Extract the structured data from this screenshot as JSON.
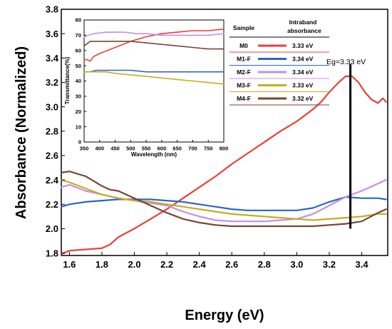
{
  "chart_data": [
    {
      "type": "line",
      "title": "",
      "xlabel": "Energy (eV)",
      "ylabel": "Absorbance (Normalized)",
      "xlim": [
        1.55,
        3.56
      ],
      "ylim": [
        1.78,
        3.8
      ],
      "x_ticks": [
        "1.6",
        "1.8",
        "2.0",
        "2.2",
        "2.4",
        "2.6",
        "2.8",
        "3.0",
        "3.2",
        "3.4"
      ],
      "y_ticks": [
        "1.8",
        "2.0",
        "2.2",
        "2.4",
        "2.6",
        "2.8",
        "3.0",
        "3.2",
        "3.4",
        "3.6",
        "3.8"
      ],
      "grid": false,
      "colors": {
        "M0": "#e8403a",
        "M1-F": "#2b64cf",
        "M2-F": "#c58fe0",
        "M3-F": "#c7ad1f",
        "M4-F": "#7a4535"
      },
      "series": [
        {
          "name": "M0",
          "color": "#e8403a",
          "x": [
            1.55,
            1.6,
            1.7,
            1.8,
            1.85,
            1.9,
            2.0,
            2.1,
            2.2,
            2.3,
            2.4,
            2.5,
            2.6,
            2.7,
            2.8,
            2.9,
            3.0,
            3.05,
            3.1,
            3.15,
            3.2,
            3.25,
            3.3,
            3.34,
            3.38,
            3.42,
            3.46,
            3.5,
            3.53,
            3.55
          ],
          "y": [
            1.79,
            1.82,
            1.83,
            1.84,
            1.87,
            1.93,
            2.0,
            2.08,
            2.16,
            2.25,
            2.34,
            2.43,
            2.53,
            2.62,
            2.71,
            2.8,
            2.88,
            2.93,
            2.98,
            3.04,
            3.12,
            3.19,
            3.25,
            3.25,
            3.2,
            3.12,
            3.06,
            3.03,
            3.07,
            3.04
          ]
        },
        {
          "name": "M1-F",
          "color": "#2b64cf",
          "x": [
            1.55,
            1.6,
            1.7,
            1.8,
            1.9,
            2.0,
            2.1,
            2.2,
            2.3,
            2.4,
            2.5,
            2.6,
            2.7,
            2.8,
            2.9,
            3.0,
            3.1,
            3.2,
            3.3,
            3.4,
            3.5,
            3.55
          ],
          "y": [
            2.18,
            2.2,
            2.22,
            2.23,
            2.24,
            2.24,
            2.24,
            2.23,
            2.22,
            2.2,
            2.18,
            2.16,
            2.15,
            2.15,
            2.15,
            2.15,
            2.17,
            2.22,
            2.26,
            2.25,
            2.25,
            2.24
          ]
        },
        {
          "name": "M2-F",
          "color": "#c58fe0",
          "x": [
            1.55,
            1.6,
            1.7,
            1.8,
            1.9,
            2.0,
            2.1,
            2.2,
            2.3,
            2.4,
            2.5,
            2.6,
            2.7,
            2.8,
            2.9,
            3.0,
            3.1,
            3.2,
            3.3,
            3.4,
            3.5,
            3.55
          ],
          "y": [
            2.34,
            2.36,
            2.31,
            2.28,
            2.25,
            2.23,
            2.21,
            2.19,
            2.14,
            2.1,
            2.07,
            2.06,
            2.06,
            2.06,
            2.07,
            2.08,
            2.12,
            2.19,
            2.26,
            2.31,
            2.37,
            2.4
          ]
        },
        {
          "name": "M3-F",
          "color": "#c7ad1f",
          "x": [
            1.55,
            1.6,
            1.7,
            1.8,
            1.9,
            2.0,
            2.1,
            2.2,
            2.3,
            2.4,
            2.5,
            2.6,
            2.7,
            2.8,
            2.9,
            3.0,
            3.1,
            3.2,
            3.3,
            3.4,
            3.5,
            3.55
          ],
          "y": [
            2.4,
            2.38,
            2.33,
            2.28,
            2.25,
            2.23,
            2.22,
            2.2,
            2.18,
            2.16,
            2.14,
            2.12,
            2.11,
            2.1,
            2.09,
            2.08,
            2.07,
            2.08,
            2.09,
            2.1,
            2.12,
            2.12
          ]
        },
        {
          "name": "M4-F",
          "color": "#7a4535",
          "x": [
            1.55,
            1.6,
            1.7,
            1.8,
            1.85,
            1.9,
            2.0,
            2.1,
            2.2,
            2.3,
            2.4,
            2.5,
            2.6,
            2.7,
            2.8,
            2.9,
            3.0,
            3.1,
            3.2,
            3.3,
            3.4,
            3.5,
            3.55
          ],
          "y": [
            2.46,
            2.47,
            2.43,
            2.35,
            2.32,
            2.31,
            2.25,
            2.19,
            2.13,
            2.08,
            2.05,
            2.03,
            2.02,
            2.02,
            2.02,
            2.02,
            2.02,
            2.02,
            2.03,
            2.04,
            2.06,
            2.13,
            2.16
          ]
        }
      ],
      "annotations": [
        {
          "text": "Eg=3.33 eV",
          "x": 3.33,
          "y_from": 2.0,
          "y_to": 3.35
        }
      ]
    },
    {
      "type": "line",
      "title": "",
      "xlabel": "Wavelength (nm)",
      "ylabel": "Transmittance(%)",
      "xlim": [
        350,
        800
      ],
      "ylim": [
        0,
        80
      ],
      "x_ticks": [
        "350",
        "400",
        "450",
        "500",
        "550",
        "600",
        "650",
        "700",
        "750",
        "800"
      ],
      "y_ticks": [
        "0",
        "10",
        "20",
        "30",
        "40",
        "50",
        "60",
        "70",
        "80"
      ],
      "grid": false,
      "series": [
        {
          "name": "M0",
          "color": "#e8403a",
          "x": [
            350,
            360,
            370,
            380,
            400,
            450,
            500,
            550,
            600,
            650,
            700,
            750,
            800
          ],
          "y": [
            54,
            54,
            53,
            56,
            58,
            62,
            66,
            69,
            71,
            72,
            73,
            73,
            74
          ]
        },
        {
          "name": "M1-F",
          "color": "#2b64cf",
          "x": [
            350,
            370,
            390,
            420,
            450,
            500,
            550,
            600,
            650,
            700,
            750,
            800
          ],
          "y": [
            46,
            46,
            47,
            47,
            47,
            47,
            46,
            46,
            46,
            46,
            46,
            46
          ]
        },
        {
          "name": "M2-F",
          "color": "#c58fe0",
          "x": [
            350,
            380,
            420,
            450,
            480,
            520,
            550,
            600,
            650,
            700,
            750,
            800
          ],
          "y": [
            69,
            71,
            72,
            72,
            72,
            71,
            71,
            70,
            70,
            70,
            70,
            71
          ]
        },
        {
          "name": "M3-F",
          "color": "#c7ad1f",
          "x": [
            350,
            370,
            390,
            420,
            450,
            500,
            550,
            600,
            650,
            700,
            750,
            800
          ],
          "y": [
            46,
            46,
            46,
            46,
            45,
            44,
            43,
            42,
            41,
            40,
            39,
            38
          ]
        },
        {
          "name": "M4-F",
          "color": "#7a4535",
          "x": [
            350,
            370,
            400,
            450,
            480,
            500,
            550,
            600,
            650,
            700,
            750,
            800
          ],
          "y": [
            63,
            66,
            66,
            66,
            66,
            66,
            65,
            64,
            63,
            62,
            61,
            61
          ]
        }
      ]
    }
  ],
  "legend_table": {
    "header_sample": "Sample",
    "header_intraband_line1": "Intraband",
    "header_intraband_line2": "absorbance",
    "rows": [
      {
        "sample": "M0",
        "value": "3.33 eV",
        "color": "#e8403a"
      },
      {
        "sample": "M1-F",
        "value": "3.34 eV",
        "color": "#2b64cf"
      },
      {
        "sample": "M2-F",
        "value": "3.34 eV",
        "color": "#c58fe0"
      },
      {
        "sample": "M3-F",
        "value": "3.33 eV",
        "color": "#c7ad1f"
      },
      {
        "sample": "M4-F",
        "value": "3.32 eV",
        "color": "#7a4535"
      }
    ]
  },
  "eg_label": "Eg=3.33 eV"
}
